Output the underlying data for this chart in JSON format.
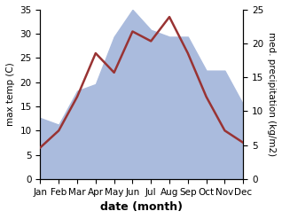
{
  "months": [
    "Jan",
    "Feb",
    "Mar",
    "Apr",
    "May",
    "Jun",
    "Jul",
    "Aug",
    "Sep",
    "Oct",
    "Nov",
    "Dec"
  ],
  "temperature": [
    6.5,
    10.0,
    17.0,
    26.0,
    22.0,
    30.5,
    28.5,
    33.5,
    26.0,
    17.0,
    10.0,
    7.5
  ],
  "precipitation": [
    9,
    8,
    13,
    14,
    21,
    25,
    22,
    21,
    21,
    16,
    16,
    11
  ],
  "temp_color": "#993333",
  "precip_color": "#aabbdd",
  "temp_ylim": [
    0,
    35
  ],
  "precip_ylim": [
    0,
    25
  ],
  "xlabel": "date (month)",
  "ylabel_left": "max temp (C)",
  "ylabel_right": "med. precipitation (kg/m2)",
  "bg_color": "#ffffff",
  "tick_fontsize": 7.5,
  "label_fontsize": 9
}
